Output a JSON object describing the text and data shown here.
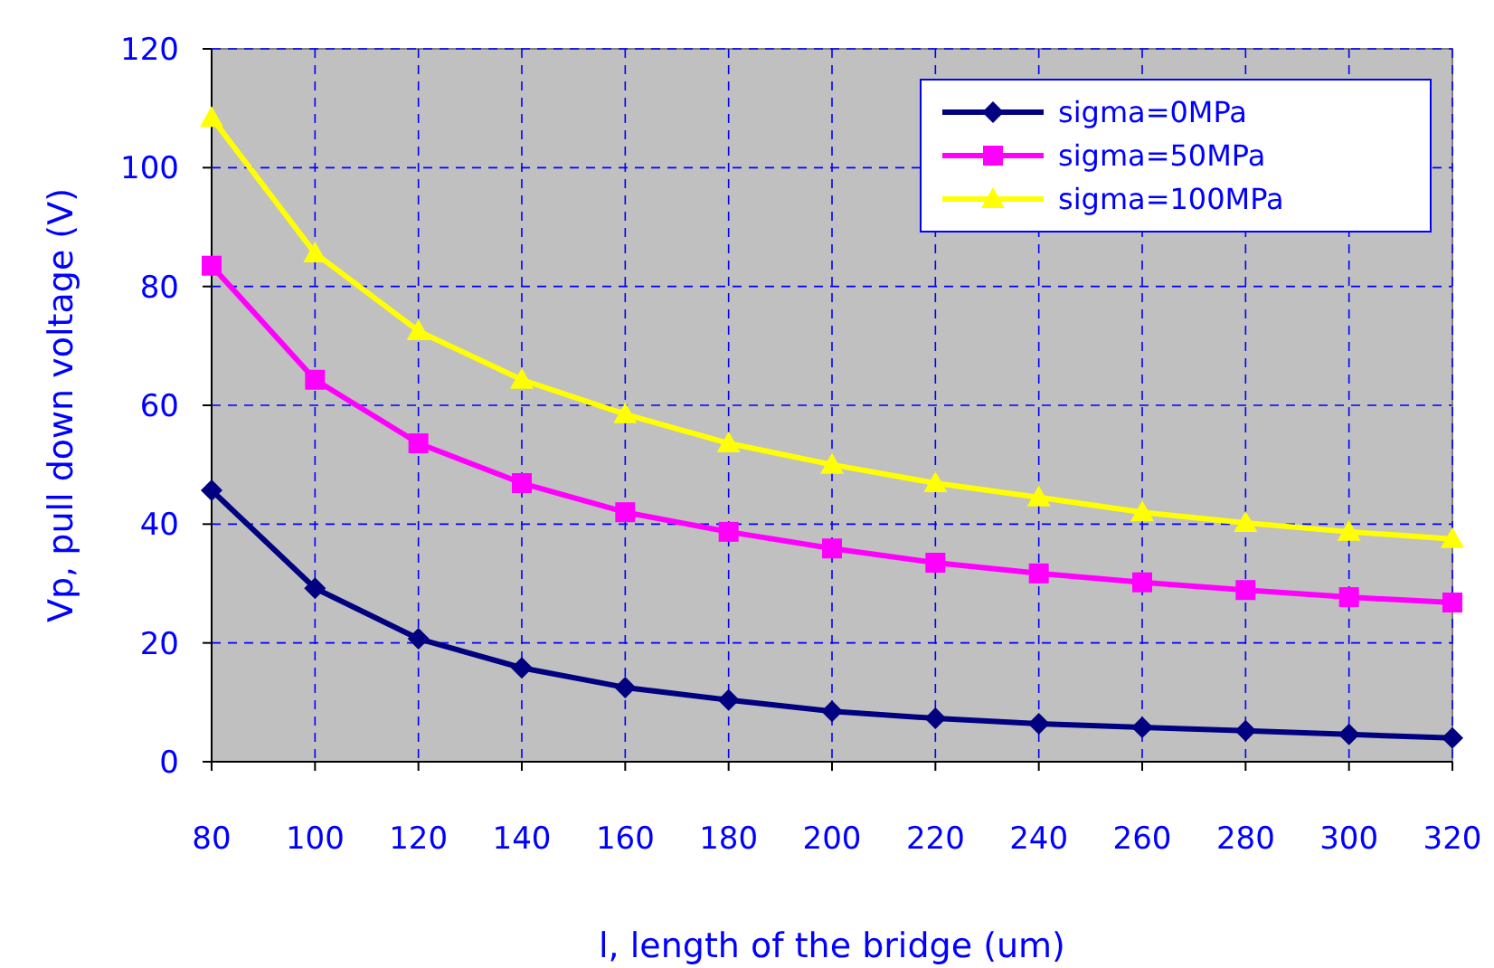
{
  "chart_data": {
    "type": "line",
    "xlabel": "l, length of the bridge (um)",
    "ylabel": "Vp, pull down voltage (V)",
    "x": [
      80,
      100,
      120,
      140,
      160,
      180,
      200,
      220,
      240,
      260,
      280,
      300,
      320
    ],
    "xlim": [
      80,
      320
    ],
    "xticks": [
      80,
      100,
      120,
      140,
      160,
      180,
      200,
      220,
      240,
      260,
      280,
      300,
      320
    ],
    "ylim": [
      0,
      120
    ],
    "yticks": [
      0,
      20,
      40,
      60,
      80,
      100,
      120
    ],
    "grid": true,
    "legend": "top right",
    "line_style": "solid",
    "series": [
      {
        "name": "sigma=0MPa",
        "color": "#000080",
        "marker": "diamond",
        "values": [
          45.7,
          29.2,
          20.7,
          15.8,
          12.5,
          10.4,
          8.5,
          7.3,
          6.4,
          5.8,
          5.2,
          4.6,
          4.0
        ]
      },
      {
        "name": "sigma=50MPa",
        "color": "#ff00ff",
        "marker": "square",
        "values": [
          83.5,
          64.3,
          53.6,
          46.9,
          42.0,
          38.7,
          35.9,
          33.5,
          31.7,
          30.2,
          28.9,
          27.7,
          26.8
        ]
      },
      {
        "name": "sigma=100MPa",
        "color": "#ffff00",
        "marker": "triangle",
        "values": [
          108.4,
          85.6,
          72.5,
          64.3,
          58.5,
          53.6,
          50.0,
          46.9,
          44.5,
          42.0,
          40.2,
          38.7,
          37.5
        ]
      }
    ]
  }
}
